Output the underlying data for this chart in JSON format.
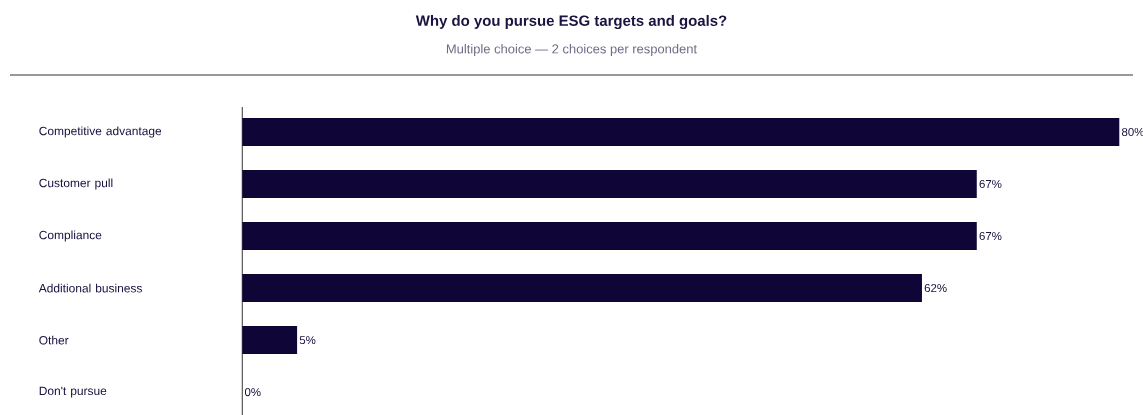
{
  "chart_data": {
    "type": "bar",
    "orientation": "horizontal",
    "title": "Why do you pursue ESG targets and goals?",
    "subtitle": "Multiple choice — 2 choices per respondent",
    "categories": [
      "Competitive advantage",
      "Customer pull",
      "Compliance",
      "Additional business",
      "Other",
      "Don't pursue"
    ],
    "values": [
      80,
      67,
      67,
      62,
      5,
      0
    ],
    "value_labels": [
      "80%",
      "67%",
      "67%",
      "62%",
      "5%",
      "0%"
    ],
    "color": "#0f0637"
  }
}
